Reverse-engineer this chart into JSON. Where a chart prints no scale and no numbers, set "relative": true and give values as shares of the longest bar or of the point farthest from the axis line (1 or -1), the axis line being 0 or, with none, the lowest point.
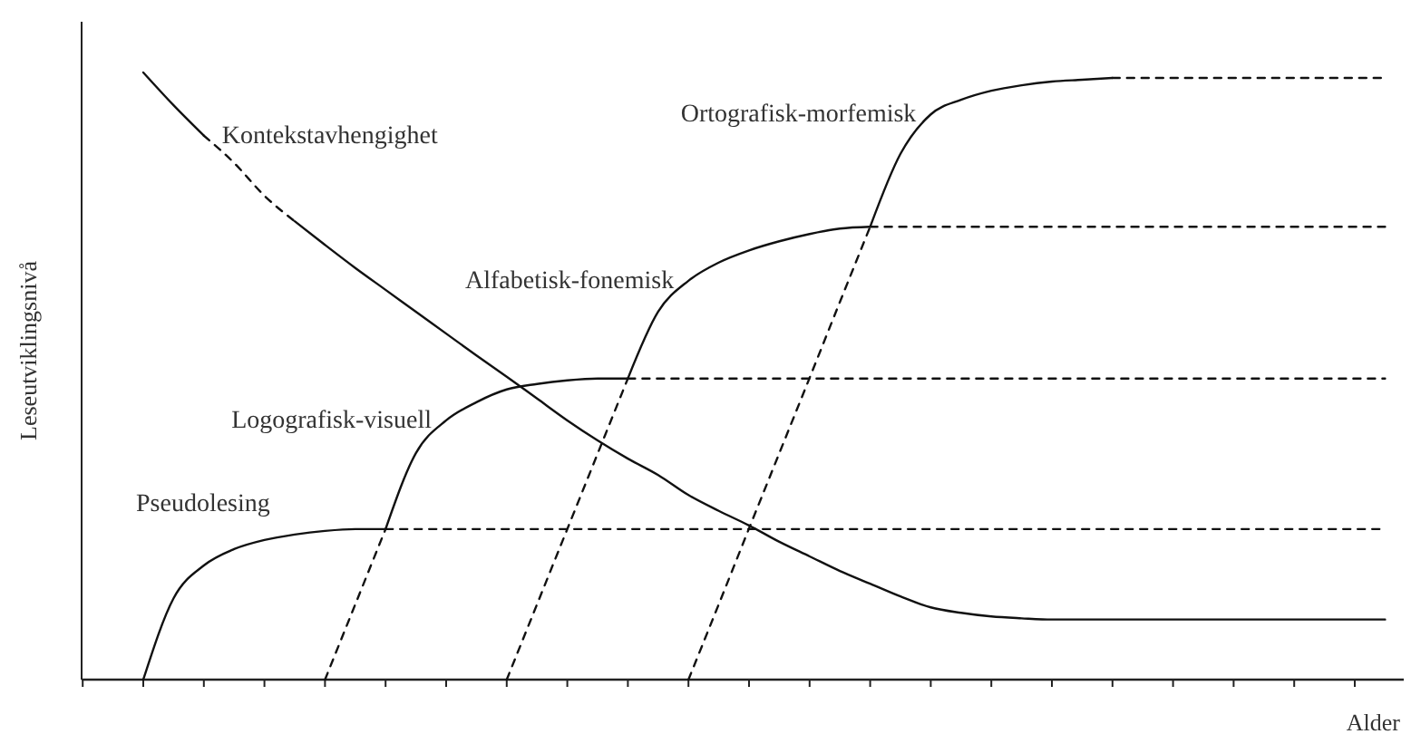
{
  "chart_data": {
    "type": "line",
    "relative": true,
    "xlabel": "Alder",
    "ylabel": "Leseutviklingsnivå",
    "legend": false,
    "grid": false,
    "categories": [
      null,
      null,
      null,
      null,
      null,
      null,
      null,
      null,
      null,
      null,
      null,
      null,
      null,
      null,
      null,
      null,
      null,
      null,
      null,
      null,
      null,
      null,
      null,
      null,
      null,
      null,
      null,
      null,
      null,
      null,
      null,
      null,
      null,
      null,
      null,
      null,
      null,
      null,
      null,
      null,
      null,
      null,
      null,
      null
    ],
    "series": [
      {
        "name": "Pseudolesing",
        "color": "#111111",
        "line_style": "solid",
        "values": [
          null,
          null,
          0,
          0.134,
          0.188,
          0.215,
          0.23,
          0.239,
          0.245,
          0.248,
          0.248,
          null,
          null,
          null,
          null,
          null,
          null,
          null,
          null,
          null,
          null,
          null,
          null,
          null,
          null,
          null,
          null,
          null,
          null,
          null,
          null,
          null,
          null,
          null,
          null,
          null,
          null,
          null,
          null,
          null,
          null,
          null,
          null,
          null
        ]
      },
      {
        "color": "#111111",
        "line_style": "dashed",
        "values": [
          null,
          null,
          null,
          null,
          null,
          null,
          null,
          null,
          null,
          null,
          0.248,
          0.248,
          0.248,
          0.248,
          0.248,
          0.248,
          0.248,
          0.248,
          0.248,
          0.248,
          0.248,
          0.248,
          0.248,
          0.248,
          0.248,
          0.248,
          0.248,
          0.248,
          0.248,
          0.248,
          0.248,
          0.248,
          0.248,
          0.248,
          0.248,
          0.248,
          0.248,
          0.248,
          0.248,
          0.248,
          0.248,
          0.248,
          0.248,
          0.248
        ]
      },
      {
        "name": "Logografisk-visuell",
        "color": "#111111",
        "line_style": "solid",
        "values": [
          null,
          null,
          null,
          null,
          null,
          null,
          null,
          null,
          null,
          null,
          0.248,
          0.373,
          0.427,
          0.457,
          0.478,
          0.487,
          0.493,
          0.496,
          0.496,
          null,
          null,
          null,
          null,
          null,
          null,
          null,
          null,
          null,
          null,
          null,
          null,
          null,
          null,
          null,
          null,
          null,
          null,
          null,
          null,
          null,
          null,
          null,
          null,
          null
        ]
      },
      {
        "color": "#111111",
        "line_style": "dashed",
        "values": [
          null,
          null,
          null,
          null,
          null,
          null,
          null,
          null,
          null,
          null,
          null,
          null,
          null,
          null,
          null,
          null,
          null,
          null,
          0.496,
          0.496,
          0.496,
          0.496,
          0.496,
          0.496,
          0.496,
          0.496,
          0.496,
          0.496,
          0.496,
          0.496,
          0.496,
          0.496,
          0.496,
          0.496,
          0.496,
          0.496,
          0.496,
          0.496,
          0.496,
          0.496,
          0.496,
          0.496,
          0.496,
          0.496
        ]
      },
      {
        "name": "Alfabetisk-fonemisk",
        "color": "#111111",
        "line_style": "solid",
        "values": [
          null,
          null,
          null,
          null,
          null,
          null,
          null,
          null,
          null,
          null,
          null,
          null,
          null,
          null,
          null,
          null,
          null,
          null,
          0.496,
          0.606,
          0.657,
          0.687,
          0.707,
          0.722,
          0.734,
          0.743,
          0.746,
          null,
          null,
          null,
          null,
          null,
          null,
          null,
          null,
          null,
          null,
          null,
          null,
          null,
          null,
          null,
          null,
          null
        ]
      },
      {
        "color": "#111111",
        "line_style": "dashed",
        "values": [
          null,
          null,
          null,
          null,
          null,
          null,
          null,
          null,
          null,
          null,
          null,
          null,
          null,
          null,
          null,
          null,
          null,
          null,
          null,
          null,
          null,
          null,
          null,
          null,
          null,
          null,
          0.746,
          0.746,
          0.746,
          0.746,
          0.746,
          0.746,
          0.746,
          0.746,
          0.746,
          0.746,
          0.746,
          0.746,
          0.746,
          0.746,
          0.746,
          0.746,
          0.746,
          0.746
        ]
      },
      {
        "name": "Ortografisk-morfemisk",
        "color": "#111111",
        "line_style": "solid",
        "values": [
          null,
          null,
          null,
          null,
          null,
          null,
          null,
          null,
          null,
          null,
          null,
          null,
          null,
          null,
          null,
          null,
          null,
          null,
          null,
          null,
          null,
          null,
          null,
          null,
          null,
          null,
          0.746,
          0.866,
          0.931,
          0.955,
          0.97,
          0.979,
          0.985,
          0.988,
          0.991,
          null,
          null,
          null,
          null,
          null,
          null,
          null,
          null,
          null
        ]
      },
      {
        "color": "#111111",
        "line_style": "dashed",
        "values": [
          null,
          null,
          null,
          null,
          null,
          null,
          null,
          null,
          null,
          null,
          null,
          null,
          null,
          null,
          null,
          null,
          null,
          null,
          null,
          null,
          null,
          null,
          null,
          null,
          null,
          null,
          null,
          null,
          null,
          null,
          null,
          null,
          null,
          null,
          0.991,
          0.991,
          0.991,
          0.991,
          0.991,
          0.991,
          0.991,
          0.991,
          0.991,
          0.991
        ]
      },
      {
        "color": "#111111",
        "line_style": "dashed",
        "values": [
          null,
          null,
          null,
          null,
          null,
          null,
          null,
          null,
          0,
          0.124,
          0.248,
          null,
          null,
          null,
          null,
          null,
          null,
          null,
          null,
          null,
          null,
          null,
          null,
          null,
          null,
          null,
          null,
          null,
          null,
          null,
          null,
          null,
          null,
          null,
          null,
          null,
          null,
          null,
          null,
          null,
          null,
          null,
          null,
          null
        ]
      },
      {
        "color": "#111111",
        "line_style": "dashed",
        "values": [
          null,
          null,
          null,
          null,
          null,
          null,
          null,
          null,
          null,
          null,
          null,
          null,
          null,
          null,
          0,
          0.124,
          0.248,
          0.372,
          0.496,
          null,
          null,
          null,
          null,
          null,
          null,
          null,
          null,
          null,
          null,
          null,
          null,
          null,
          null,
          null,
          null,
          null,
          null,
          null,
          null,
          null,
          null,
          null,
          null,
          null
        ]
      },
      {
        "color": "#111111",
        "line_style": "dashed",
        "values": [
          null,
          null,
          null,
          null,
          null,
          null,
          null,
          null,
          null,
          null,
          null,
          null,
          null,
          null,
          null,
          null,
          null,
          null,
          null,
          null,
          0,
          0.124,
          0.249,
          0.373,
          0.497,
          0.622,
          0.746,
          null,
          null,
          null,
          null,
          null,
          null,
          null,
          null,
          null,
          null,
          null,
          null,
          null,
          null,
          null,
          null,
          null
        ]
      },
      {
        "name": "Kontekstavhengighet",
        "color": "#111111",
        "line_style": "solid",
        "values": [
          null,
          null,
          1,
          0.946,
          0.896,
          null,
          null,
          null,
          null,
          null,
          null,
          null,
          null,
          null,
          null,
          null,
          null,
          null,
          null,
          null,
          null,
          null,
          null,
          null,
          null,
          null,
          null,
          null,
          null,
          null,
          null,
          null,
          null,
          null,
          null,
          null,
          null,
          null,
          null,
          null,
          null,
          null,
          null,
          null
        ]
      },
      {
        "color": "#111111",
        "line_style": "dashed",
        "values": [
          null,
          null,
          null,
          null,
          0.896,
          0.851,
          0.797,
          0.755,
          null,
          null,
          null,
          null,
          null,
          null,
          null,
          null,
          null,
          null,
          null,
          null,
          null,
          null,
          null,
          null,
          null,
          null,
          null,
          null,
          null,
          null,
          null,
          null,
          null,
          null,
          null,
          null,
          null,
          null,
          null,
          null,
          null,
          null,
          null,
          null
        ]
      },
      {
        "color": "#111111",
        "line_style": "solid",
        "values": [
          null,
          null,
          null,
          null,
          null,
          null,
          null,
          0.755,
          0.716,
          0.678,
          0.642,
          0.606,
          0.57,
          0.534,
          0.499,
          0.463,
          0.427,
          0.394,
          0.364,
          0.337,
          0.304,
          0.278,
          0.254,
          0.227,
          0.203,
          0.179,
          0.158,
          0.137,
          0.119,
          0.11,
          0.104,
          0.101,
          0.099,
          0.099,
          0.099,
          0.099,
          0.099,
          0.099,
          0.099,
          0.099,
          0.099,
          0.099,
          0.099,
          0.099
        ]
      }
    ]
  }
}
